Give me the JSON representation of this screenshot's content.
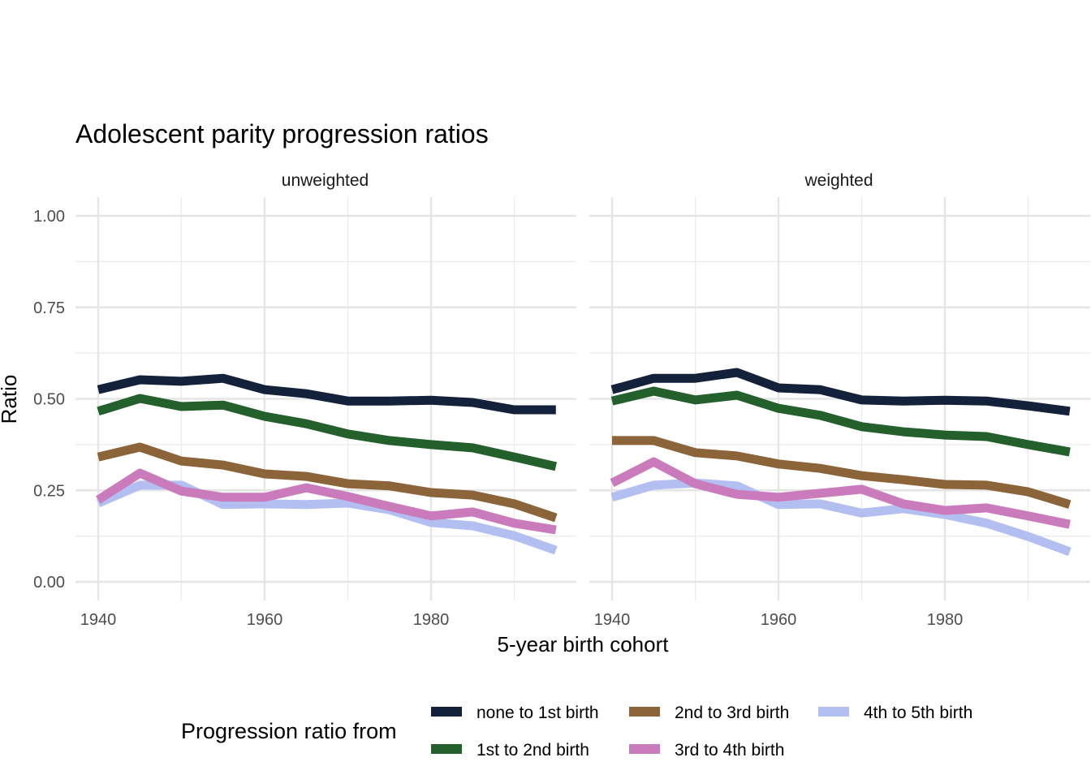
{
  "chart_data": {
    "type": "line",
    "title": "Adolescent parity progression ratios",
    "xlabel": "5-year birth cohort",
    "ylabel": "Ratio",
    "xlim": [
      1938,
      1997
    ],
    "ylim": [
      -0.05,
      1.05
    ],
    "x_ticks": [
      1940,
      1960,
      1980
    ],
    "x_tick_labels": [
      "1940",
      "1960",
      "1980"
    ],
    "y_ticks": [
      0,
      0.25,
      0.5,
      0.75,
      1.0
    ],
    "y_tick_labels": [
      "0.00",
      "0.25",
      "0.50",
      "0.75",
      "1.00"
    ],
    "grid": true,
    "legend": {
      "title": "Progression ratio from",
      "position": "bottom",
      "entries": [
        "none to 1st birth",
        "1st to 2nd birth",
        "2nd to 3rd birth",
        "3rd to 4th birth",
        "4th to 5th birth"
      ]
    },
    "colors": {
      "none to 1st birth": "#14213a",
      "1st to 2nd birth": "#24602c",
      "2nd to 3rd birth": "#8b6539",
      "3rd to 4th birth": "#c97bbb",
      "4th to 5th birth": "#b3bff0"
    },
    "x": [
      1940,
      1945,
      1950,
      1955,
      1960,
      1965,
      1970,
      1975,
      1980,
      1985,
      1990,
      1995
    ],
    "panels": [
      {
        "name": "unweighted",
        "series": [
          {
            "name": "none to 1st birth",
            "values": [
              0.525,
              0.552,
              0.548,
              0.556,
              0.525,
              0.514,
              0.494,
              0.494,
              0.496,
              0.49,
              0.47,
              0.47
            ]
          },
          {
            "name": "1st to 2nd birth",
            "values": [
              0.466,
              0.501,
              0.479,
              0.483,
              0.452,
              0.432,
              0.404,
              0.386,
              0.375,
              0.366,
              0.341,
              0.315
            ]
          },
          {
            "name": "2nd to 3rd birth",
            "values": [
              0.341,
              0.368,
              0.33,
              0.319,
              0.295,
              0.288,
              0.268,
              0.262,
              0.244,
              0.237,
              0.213,
              0.175
            ]
          },
          {
            "name": "4th to 5th birth",
            "values": [
              0.215,
              0.264,
              0.264,
              0.211,
              0.213,
              0.211,
              0.215,
              0.197,
              0.162,
              0.153,
              0.126,
              0.086
            ]
          },
          {
            "name": "3rd to 4th birth",
            "values": [
              0.224,
              0.297,
              0.248,
              0.231,
              0.231,
              0.257,
              0.233,
              0.206,
              0.18,
              0.191,
              0.16,
              0.142
            ]
          }
        ]
      },
      {
        "name": "weighted",
        "series": [
          {
            "name": "none to 1st birth",
            "values": [
              0.525,
              0.556,
              0.556,
              0.572,
              0.53,
              0.525,
              0.497,
              0.494,
              0.496,
              0.494,
              0.481,
              0.466
            ]
          },
          {
            "name": "1st to 2nd birth",
            "values": [
              0.494,
              0.521,
              0.497,
              0.51,
              0.474,
              0.455,
              0.424,
              0.41,
              0.401,
              0.397,
              0.375,
              0.355
            ]
          },
          {
            "name": "2nd to 3rd birth",
            "values": [
              0.386,
              0.386,
              0.353,
              0.344,
              0.322,
              0.31,
              0.29,
              0.279,
              0.266,
              0.264,
              0.246,
              0.211
            ]
          },
          {
            "name": "4th to 5th birth",
            "values": [
              0.231,
              0.264,
              0.27,
              0.262,
              0.211,
              0.213,
              0.188,
              0.2,
              0.184,
              0.16,
              0.124,
              0.082
            ]
          },
          {
            "name": "3rd to 4th birth",
            "values": [
              0.27,
              0.328,
              0.268,
              0.239,
              0.231,
              0.242,
              0.253,
              0.213,
              0.195,
              0.202,
              0.18,
              0.157
            ]
          }
        ]
      }
    ]
  }
}
